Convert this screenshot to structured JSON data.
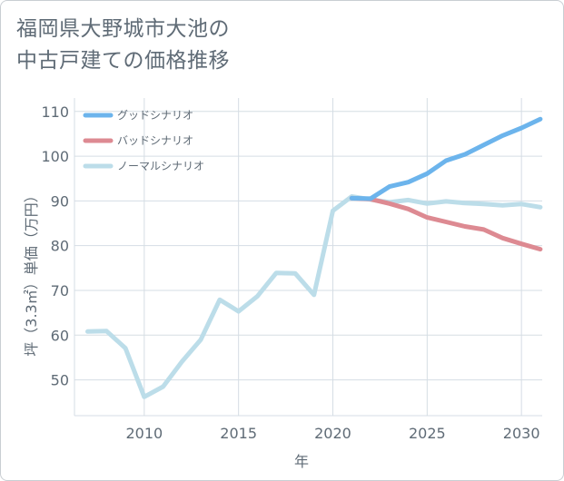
{
  "title_lines": [
    "福岡県大野城市大池の",
    "中古戸建ての価格推移"
  ],
  "chart_data": {
    "type": "line",
    "title": "福岡県大野城市大池の中古戸建ての価格推移",
    "xlabel": "年",
    "ylabel": "坪（3.3㎡）単価（万円）",
    "xlim": [
      2006.3,
      2031.1
    ],
    "ylim": [
      42,
      113
    ],
    "xticks": [
      2010,
      2015,
      2020,
      2025,
      2030
    ],
    "yticks": [
      50,
      60,
      70,
      80,
      90,
      100,
      110
    ],
    "grid": true,
    "legend_position": "top-left",
    "series": [
      {
        "name": "グッドシナリオ",
        "color": "#6cb4ec",
        "x": [
          2021,
          2022,
          2023,
          2024,
          2025,
          2026,
          2027,
          2028,
          2029,
          2030,
          2031
        ],
        "values": [
          90.6,
          90.5,
          93.2,
          94.2,
          96.1,
          99.0,
          100.4,
          102.5,
          104.6,
          106.3,
          108.3
        ]
      },
      {
        "name": "バッドシナリオ",
        "color": "#dd8a92",
        "x": [
          2021,
          2022,
          2023,
          2024,
          2025,
          2026,
          2027,
          2028,
          2029,
          2030,
          2031
        ],
        "values": [
          90.6,
          90.4,
          89.4,
          88.2,
          86.3,
          85.3,
          84.3,
          83.6,
          81.7,
          80.4,
          79.2
        ]
      },
      {
        "name": "ノーマルシナリオ",
        "color": "#bcdde9",
        "x": [
          2007,
          2008,
          2009,
          2010,
          2011,
          2012,
          2013,
          2014,
          2015,
          2016,
          2017,
          2018,
          2019,
          2020,
          2021,
          2022,
          2023,
          2024,
          2025,
          2026,
          2027,
          2028,
          2029,
          2030,
          2031
        ],
        "values": [
          60.8,
          60.9,
          57.1,
          46.2,
          48.5,
          54.1,
          59.0,
          67.9,
          65.3,
          68.7,
          73.9,
          73.8,
          69.0,
          87.8,
          91.0,
          90.3,
          89.7,
          90.2,
          89.4,
          89.9,
          89.5,
          89.3,
          89.0,
          89.3,
          88.6
        ]
      }
    ]
  }
}
